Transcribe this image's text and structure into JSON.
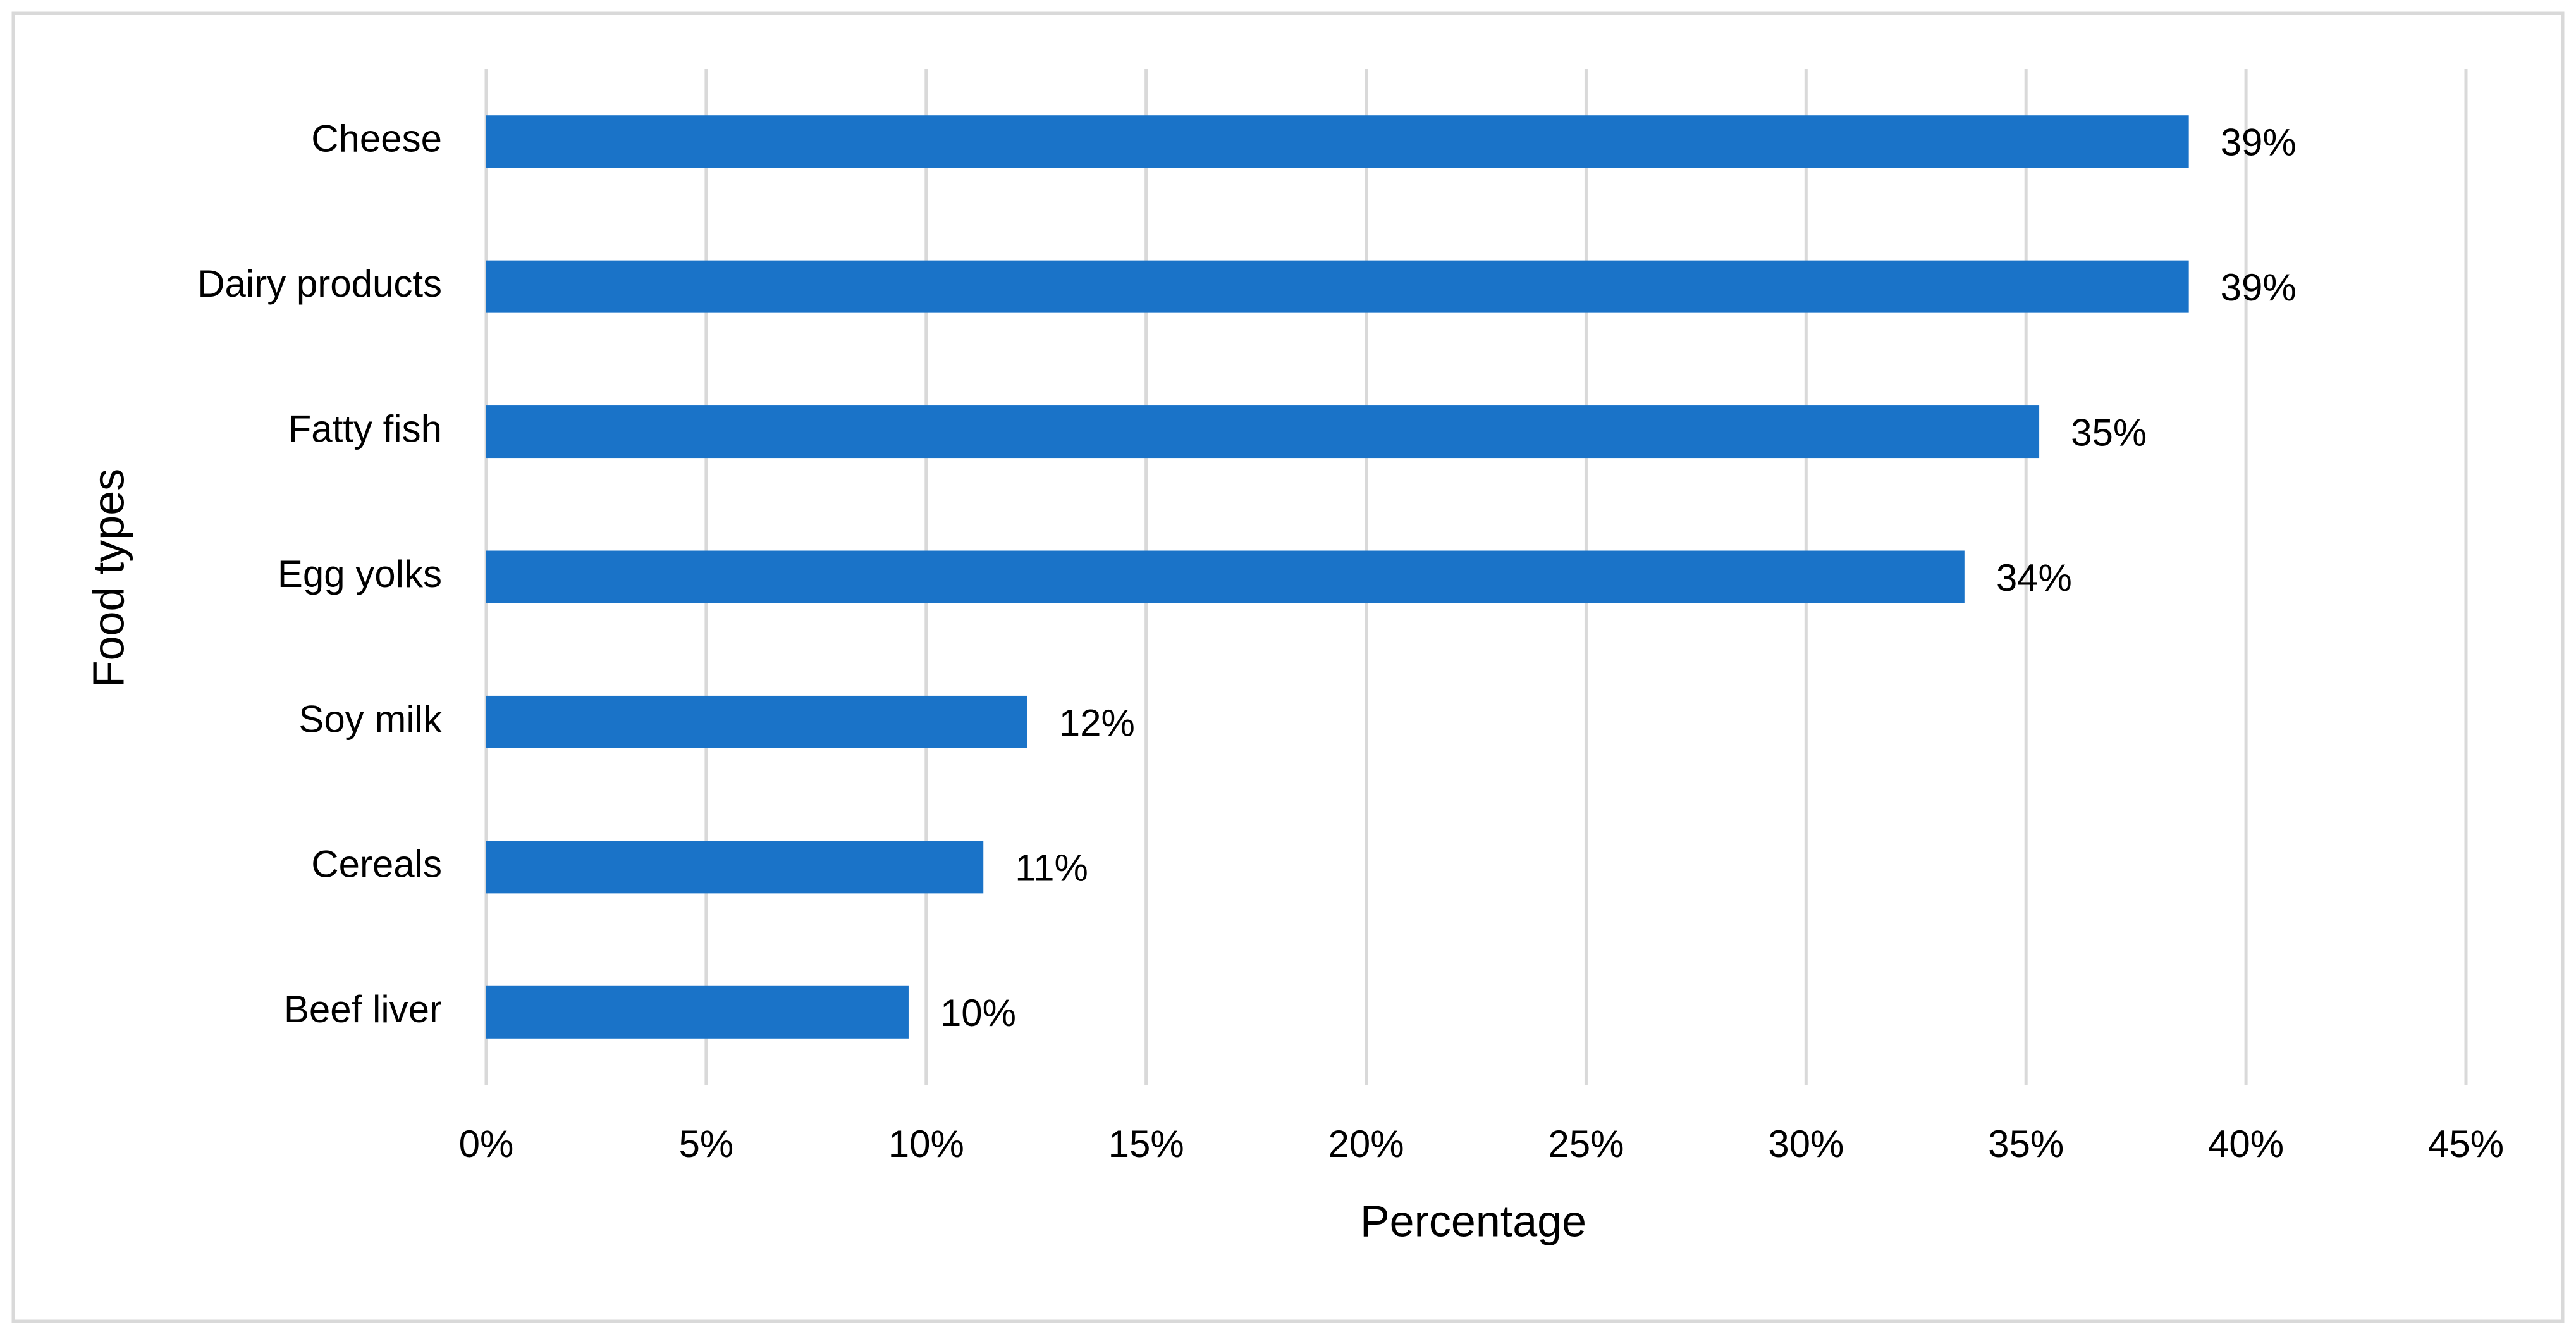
{
  "chart_data": {
    "type": "bar",
    "orientation": "horizontal",
    "x_label": "Percentage",
    "y_label": "Food types",
    "categories": [
      "Cheese",
      "Dairy products",
      "Fatty fish",
      "Egg yolks",
      "Soy milk",
      "Cereals",
      "Beef liver"
    ],
    "values": [
      38.7,
      38.7,
      35.3,
      33.6,
      12.3,
      11.3,
      9.6
    ],
    "value_labels": [
      "39%",
      "39%",
      "35%",
      "34%",
      "12%",
      "11%",
      "10%"
    ],
    "color": "#1a73c8",
    "xlim": [
      0,
      45
    ],
    "xticks": [
      {
        "value": 0,
        "label": "0%"
      },
      {
        "value": 5,
        "label": "5%"
      },
      {
        "value": 10,
        "label": "10%"
      },
      {
        "value": 15,
        "label": "15%"
      },
      {
        "value": 20,
        "label": "20%"
      },
      {
        "value": 25,
        "label": "25%"
      },
      {
        "value": 30,
        "label": "30%"
      },
      {
        "value": 35,
        "label": "35%"
      },
      {
        "value": 40,
        "label": "40%"
      },
      {
        "value": 45,
        "label": "45%"
      }
    ],
    "grid": true
  }
}
